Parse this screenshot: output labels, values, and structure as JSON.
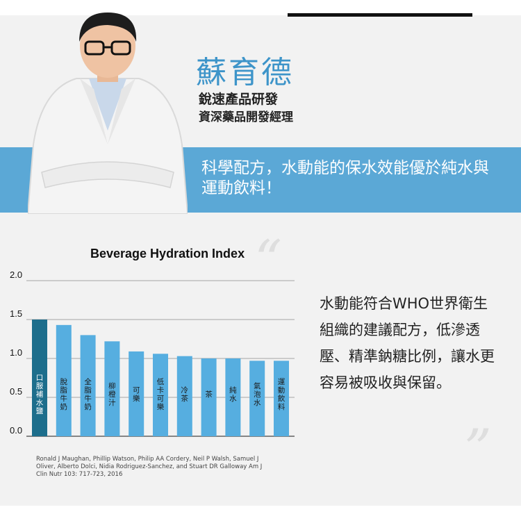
{
  "person": {
    "name": "蘇育德",
    "role_company": "銳速產品研發",
    "role_title": "資深藥品開發經理"
  },
  "tagline": "科學配方，水動能的保水效能優於純水與運動飲料！",
  "description": "水動能符合WHO世界衛生組織的建議配方，低滲透壓、精準鈉糖比例，讓水更容易被吸收與保留。",
  "citation": "Ronald J Maughan, Phillip Watson, Philip AA Cordery, Neil P Walsh, Samuel J Oliver, Alberto Dolci, Nidia Rodriguez-Sanchez, and Stuart DR Galloway Am J Clin Nutr 103: 717-723, 2016",
  "colors": {
    "accent": "#5ba8d6",
    "bar": "#56aee0",
    "bar_highlight": "#1d6e8c",
    "name": "#3d94c9"
  },
  "chart_data": {
    "type": "bar",
    "title": "Beverage Hydration Index",
    "xlabel": "",
    "ylabel": "",
    "ylim": [
      0,
      2.0
    ],
    "yticks": [
      "0.0",
      "0.5",
      "1.0",
      "1.5",
      "2.0"
    ],
    "grid": true,
    "categories": [
      "口服補水鹽",
      "脫脂牛奶",
      "全脂牛奶",
      "柳橙汁",
      "可樂",
      "低卡可樂",
      "冷茶",
      "茶",
      "純水",
      "氣泡水",
      "運動飲料"
    ],
    "values": [
      1.5,
      1.43,
      1.3,
      1.22,
      1.09,
      1.06,
      1.03,
      1.0,
      1.0,
      0.97,
      0.97
    ],
    "highlight_index": 0
  }
}
